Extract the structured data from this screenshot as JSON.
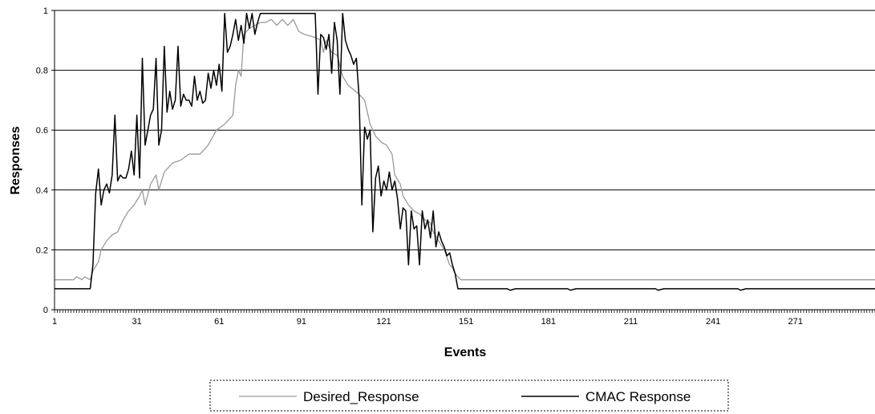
{
  "chart_data": {
    "type": "line",
    "title": "",
    "xlabel": "Events",
    "ylabel": "Responses",
    "xlim": [
      1,
      300
    ],
    "ylim": [
      0,
      1
    ],
    "grid": "horizontal",
    "legend_position": "bottom",
    "x_ticks": [
      "1",
      "31",
      "61",
      "91",
      "121",
      "151",
      "181",
      "211",
      "241",
      "271"
    ],
    "y_ticks": [
      "0",
      "0.2",
      "0.4",
      "0.6",
      "0.8",
      "1"
    ],
    "series": [
      {
        "name": "Desired_Response",
        "color": "#9a9a9a",
        "points": [
          [
            1,
            0.1
          ],
          [
            8,
            0.1
          ],
          [
            9,
            0.11
          ],
          [
            11,
            0.1
          ],
          [
            12,
            0.11
          ],
          [
            14,
            0.1
          ],
          [
            15,
            0.13
          ],
          [
            17,
            0.16
          ],
          [
            18,
            0.2
          ],
          [
            20,
            0.23
          ],
          [
            22,
            0.25
          ],
          [
            24,
            0.26
          ],
          [
            26,
            0.3
          ],
          [
            28,
            0.33
          ],
          [
            30,
            0.35
          ],
          [
            32,
            0.38
          ],
          [
            33,
            0.4
          ],
          [
            34,
            0.35
          ],
          [
            36,
            0.42
          ],
          [
            38,
            0.45
          ],
          [
            39,
            0.4
          ],
          [
            41,
            0.46
          ],
          [
            44,
            0.49
          ],
          [
            47,
            0.5
          ],
          [
            50,
            0.52
          ],
          [
            54,
            0.52
          ],
          [
            57,
            0.55
          ],
          [
            60,
            0.6
          ],
          [
            63,
            0.62
          ],
          [
            66,
            0.65
          ],
          [
            67,
            0.75
          ],
          [
            68,
            0.8
          ],
          [
            69,
            0.78
          ],
          [
            70,
            0.92
          ],
          [
            72,
            0.94
          ],
          [
            74,
            0.95
          ],
          [
            76,
            0.96
          ],
          [
            78,
            0.96
          ],
          [
            80,
            0.97
          ],
          [
            82,
            0.95
          ],
          [
            84,
            0.97
          ],
          [
            86,
            0.95
          ],
          [
            88,
            0.97
          ],
          [
            90,
            0.93
          ],
          [
            92,
            0.92
          ],
          [
            96,
            0.91
          ],
          [
            98,
            0.9
          ],
          [
            99,
            0.86
          ],
          [
            100,
            0.9
          ],
          [
            102,
            0.86
          ],
          [
            104,
            0.85
          ],
          [
            106,
            0.78
          ],
          [
            108,
            0.75
          ],
          [
            112,
            0.72
          ],
          [
            114,
            0.7
          ],
          [
            116,
            0.62
          ],
          [
            118,
            0.58
          ],
          [
            120,
            0.56
          ],
          [
            122,
            0.55
          ],
          [
            124,
            0.52
          ],
          [
            125,
            0.45
          ],
          [
            127,
            0.42
          ],
          [
            128,
            0.38
          ],
          [
            130,
            0.35
          ],
          [
            132,
            0.33
          ],
          [
            134,
            0.32
          ],
          [
            136,
            0.3
          ],
          [
            138,
            0.29
          ],
          [
            139,
            0.26
          ],
          [
            141,
            0.23
          ],
          [
            143,
            0.2
          ],
          [
            145,
            0.15
          ],
          [
            146,
            0.14
          ],
          [
            147,
            0.12
          ],
          [
            149,
            0.1
          ],
          [
            300,
            0.1
          ]
        ]
      },
      {
        "name": "CMAC Response",
        "color": "#000000",
        "points": [
          [
            1,
            0.07
          ],
          [
            14,
            0.07
          ],
          [
            15,
            0.15
          ],
          [
            16,
            0.39
          ],
          [
            17,
            0.47
          ],
          [
            18,
            0.35
          ],
          [
            19,
            0.4
          ],
          [
            20,
            0.42
          ],
          [
            21,
            0.39
          ],
          [
            22,
            0.45
          ],
          [
            23,
            0.65
          ],
          [
            24,
            0.43
          ],
          [
            25,
            0.45
          ],
          [
            26,
            0.44
          ],
          [
            27,
            0.44
          ],
          [
            28,
            0.47
          ],
          [
            29,
            0.53
          ],
          [
            30,
            0.45
          ],
          [
            31,
            0.65
          ],
          [
            32,
            0.44
          ],
          [
            33,
            0.84
          ],
          [
            34,
            0.55
          ],
          [
            35,
            0.6
          ],
          [
            36,
            0.65
          ],
          [
            37,
            0.67
          ],
          [
            38,
            0.84
          ],
          [
            39,
            0.55
          ],
          [
            40,
            0.6
          ],
          [
            41,
            0.88
          ],
          [
            42,
            0.66
          ],
          [
            43,
            0.73
          ],
          [
            44,
            0.67
          ],
          [
            45,
            0.7
          ],
          [
            46,
            0.88
          ],
          [
            47,
            0.68
          ],
          [
            48,
            0.72
          ],
          [
            49,
            0.7
          ],
          [
            50,
            0.7
          ],
          [
            51,
            0.68
          ],
          [
            52,
            0.78
          ],
          [
            53,
            0.7
          ],
          [
            54,
            0.73
          ],
          [
            55,
            0.69
          ],
          [
            56,
            0.7
          ],
          [
            57,
            0.79
          ],
          [
            58,
            0.74
          ],
          [
            59,
            0.8
          ],
          [
            60,
            0.75
          ],
          [
            61,
            0.82
          ],
          [
            62,
            0.73
          ],
          [
            63,
            0.99
          ],
          [
            64,
            0.86
          ],
          [
            65,
            0.88
          ],
          [
            66,
            0.92
          ],
          [
            67,
            0.97
          ],
          [
            68,
            0.9
          ],
          [
            69,
            0.95
          ],
          [
            70,
            0.89
          ],
          [
            71,
            0.99
          ],
          [
            72,
            0.94
          ],
          [
            73,
            0.99
          ],
          [
            74,
            0.92
          ],
          [
            75,
            0.96
          ],
          [
            76,
            0.99
          ],
          [
            90,
            0.99
          ],
          [
            96,
            0.99
          ],
          [
            97,
            0.72
          ],
          [
            98,
            0.92
          ],
          [
            99,
            0.91
          ],
          [
            100,
            0.87
          ],
          [
            101,
            0.92
          ],
          [
            102,
            0.79
          ],
          [
            103,
            0.96
          ],
          [
            104,
            0.9
          ],
          [
            105,
            0.72
          ],
          [
            106,
            0.99
          ],
          [
            107,
            0.9
          ],
          [
            108,
            0.87
          ],
          [
            109,
            0.85
          ],
          [
            110,
            0.82
          ],
          [
            111,
            0.84
          ],
          [
            112,
            0.71
          ],
          [
            113,
            0.35
          ],
          [
            114,
            0.61
          ],
          [
            115,
            0.57
          ],
          [
            116,
            0.6
          ],
          [
            117,
            0.26
          ],
          [
            118,
            0.44
          ],
          [
            119,
            0.48
          ],
          [
            120,
            0.38
          ],
          [
            121,
            0.43
          ],
          [
            122,
            0.4
          ],
          [
            123,
            0.46
          ],
          [
            124,
            0.4
          ],
          [
            125,
            0.43
          ],
          [
            126,
            0.37
          ],
          [
            127,
            0.27
          ],
          [
            128,
            0.34
          ],
          [
            129,
            0.33
          ],
          [
            130,
            0.15
          ],
          [
            131,
            0.33
          ],
          [
            132,
            0.27
          ],
          [
            133,
            0.28
          ],
          [
            134,
            0.15
          ],
          [
            135,
            0.33
          ],
          [
            136,
            0.27
          ],
          [
            137,
            0.3
          ],
          [
            138,
            0.24
          ],
          [
            139,
            0.33
          ],
          [
            140,
            0.21
          ],
          [
            141,
            0.26
          ],
          [
            142,
            0.23
          ],
          [
            143,
            0.21
          ],
          [
            144,
            0.18
          ],
          [
            145,
            0.19
          ],
          [
            146,
            0.15
          ],
          [
            147,
            0.12
          ],
          [
            148,
            0.07
          ],
          [
            166,
            0.07
          ],
          [
            167,
            0.065
          ],
          [
            169,
            0.07
          ],
          [
            188,
            0.07
          ],
          [
            189,
            0.065
          ],
          [
            191,
            0.07
          ],
          [
            220,
            0.07
          ],
          [
            221,
            0.065
          ],
          [
            223,
            0.07
          ],
          [
            250,
            0.07
          ],
          [
            251,
            0.065
          ],
          [
            253,
            0.07
          ],
          [
            300,
            0.07
          ]
        ]
      }
    ]
  }
}
